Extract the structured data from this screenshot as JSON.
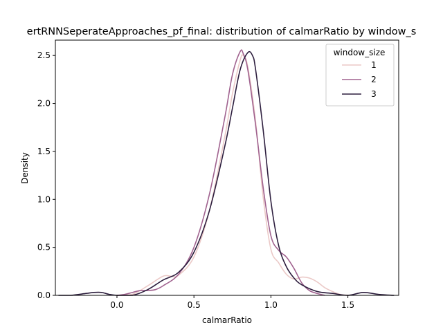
{
  "chart_data": {
    "type": "line",
    "title": "ertRNNSeperateApproaches_pf_final: distribution of calmarRatio by window_s",
    "xlabel": "calmarRatio",
    "ylabel": "Density",
    "xlim": [
      -0.4,
      1.83
    ],
    "ylim": [
      0,
      2.66
    ],
    "xticks": [
      0.0,
      0.5,
      1.0,
      1.5
    ],
    "xtick_labels": [
      "0.0",
      "0.5",
      "1.0",
      "1.5"
    ],
    "yticks": [
      0.0,
      0.5,
      1.0,
      1.5,
      2.0,
      2.5
    ],
    "ytick_labels": [
      "0.0",
      "0.5",
      "1.0",
      "1.5",
      "2.0",
      "2.5"
    ],
    "grid": false,
    "legend": {
      "title": "window_size",
      "placement": "top-right"
    },
    "series": [
      {
        "name": "1",
        "color": "#ebc9c7",
        "x": [
          0.0,
          0.1,
          0.2,
          0.3,
          0.35,
          0.4,
          0.5,
          0.6,
          0.7,
          0.75,
          0.8,
          0.82,
          0.85,
          0.9,
          0.95,
          1.0,
          1.05,
          1.1,
          1.15,
          1.2,
          1.25,
          1.3,
          1.35,
          1.4,
          1.45,
          1.5
        ],
        "y": [
          0.0,
          0.01,
          0.1,
          0.2,
          0.2,
          0.21,
          0.4,
          0.88,
          1.65,
          2.1,
          2.45,
          2.5,
          2.38,
          1.82,
          1.02,
          0.48,
          0.34,
          0.22,
          0.17,
          0.19,
          0.18,
          0.14,
          0.08,
          0.04,
          0.01,
          0.0
        ]
      },
      {
        "name": "2",
        "color": "#a0628f",
        "x": [
          0.0,
          0.05,
          0.1,
          0.15,
          0.2,
          0.25,
          0.3,
          0.4,
          0.5,
          0.6,
          0.7,
          0.75,
          0.8,
          0.82,
          0.85,
          0.9,
          0.95,
          1.0,
          1.05,
          1.1,
          1.15,
          1.2,
          1.25,
          1.3,
          1.35
        ],
        "y": [
          0.0,
          0.01,
          0.03,
          0.05,
          0.05,
          0.06,
          0.1,
          0.22,
          0.5,
          1.05,
          1.85,
          2.3,
          2.54,
          2.52,
          2.35,
          1.78,
          1.12,
          0.62,
          0.47,
          0.4,
          0.28,
          0.13,
          0.05,
          0.02,
          0.0
        ]
      },
      {
        "name": "3",
        "color": "#2d1e3e",
        "x": [
          -0.38,
          -0.3,
          -0.2,
          -0.15,
          -0.1,
          -0.05,
          0.0,
          0.1,
          0.2,
          0.3,
          0.4,
          0.5,
          0.6,
          0.7,
          0.75,
          0.8,
          0.85,
          0.88,
          0.9,
          0.95,
          1.0,
          1.05,
          1.1,
          1.15,
          1.2,
          1.3,
          1.4,
          1.5,
          1.6,
          1.7,
          1.8
        ],
        "y": [
          0.0,
          0.0,
          0.02,
          0.03,
          0.03,
          0.01,
          0.0,
          0.0,
          0.06,
          0.16,
          0.24,
          0.45,
          0.88,
          1.55,
          1.95,
          2.35,
          2.53,
          2.5,
          2.36,
          1.72,
          0.98,
          0.52,
          0.3,
          0.18,
          0.11,
          0.04,
          0.02,
          0.0,
          0.03,
          0.01,
          0.0
        ]
      }
    ]
  }
}
